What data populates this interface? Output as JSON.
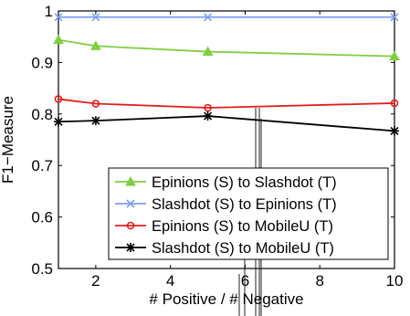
{
  "chart_data": {
    "type": "line",
    "xlabel": "# Positive / # Negative",
    "ylabel": "F1−Measure",
    "xlim": [
      1,
      10
    ],
    "ylim": [
      0.5,
      1
    ],
    "xticks": [
      2,
      4,
      6,
      8,
      10
    ],
    "yticks": [
      0.5,
      0.6,
      0.7,
      0.8,
      0.9,
      1
    ],
    "ytick_labels": [
      "0.5",
      "0.6",
      "0.7",
      "0.8",
      "0.9",
      "1"
    ],
    "grid": false,
    "legend_position": "bottom-right",
    "x": [
      1,
      2,
      5,
      10
    ],
    "series": [
      {
        "name": "Epinions (S) to Slashdot (T)",
        "color": "#7fcf3f",
        "marker": "triangle",
        "values": [
          0.944,
          0.932,
          0.921,
          0.912
        ]
      },
      {
        "name": "Slashdot (S) to Epinions (T)",
        "color": "#7e9ef0",
        "marker": "x",
        "values": [
          0.988,
          0.988,
          0.988,
          0.988
        ]
      },
      {
        "name": "Epinions (S) to MobileU (T)",
        "color": "#e0201b",
        "marker": "circle",
        "values": [
          0.829,
          0.82,
          0.812,
          0.821
        ]
      },
      {
        "name": "Slashdot (S) to MobileU (T)",
        "color": "#000000",
        "marker": "star",
        "values": [
          0.785,
          0.787,
          0.796,
          0.767
        ]
      }
    ]
  }
}
